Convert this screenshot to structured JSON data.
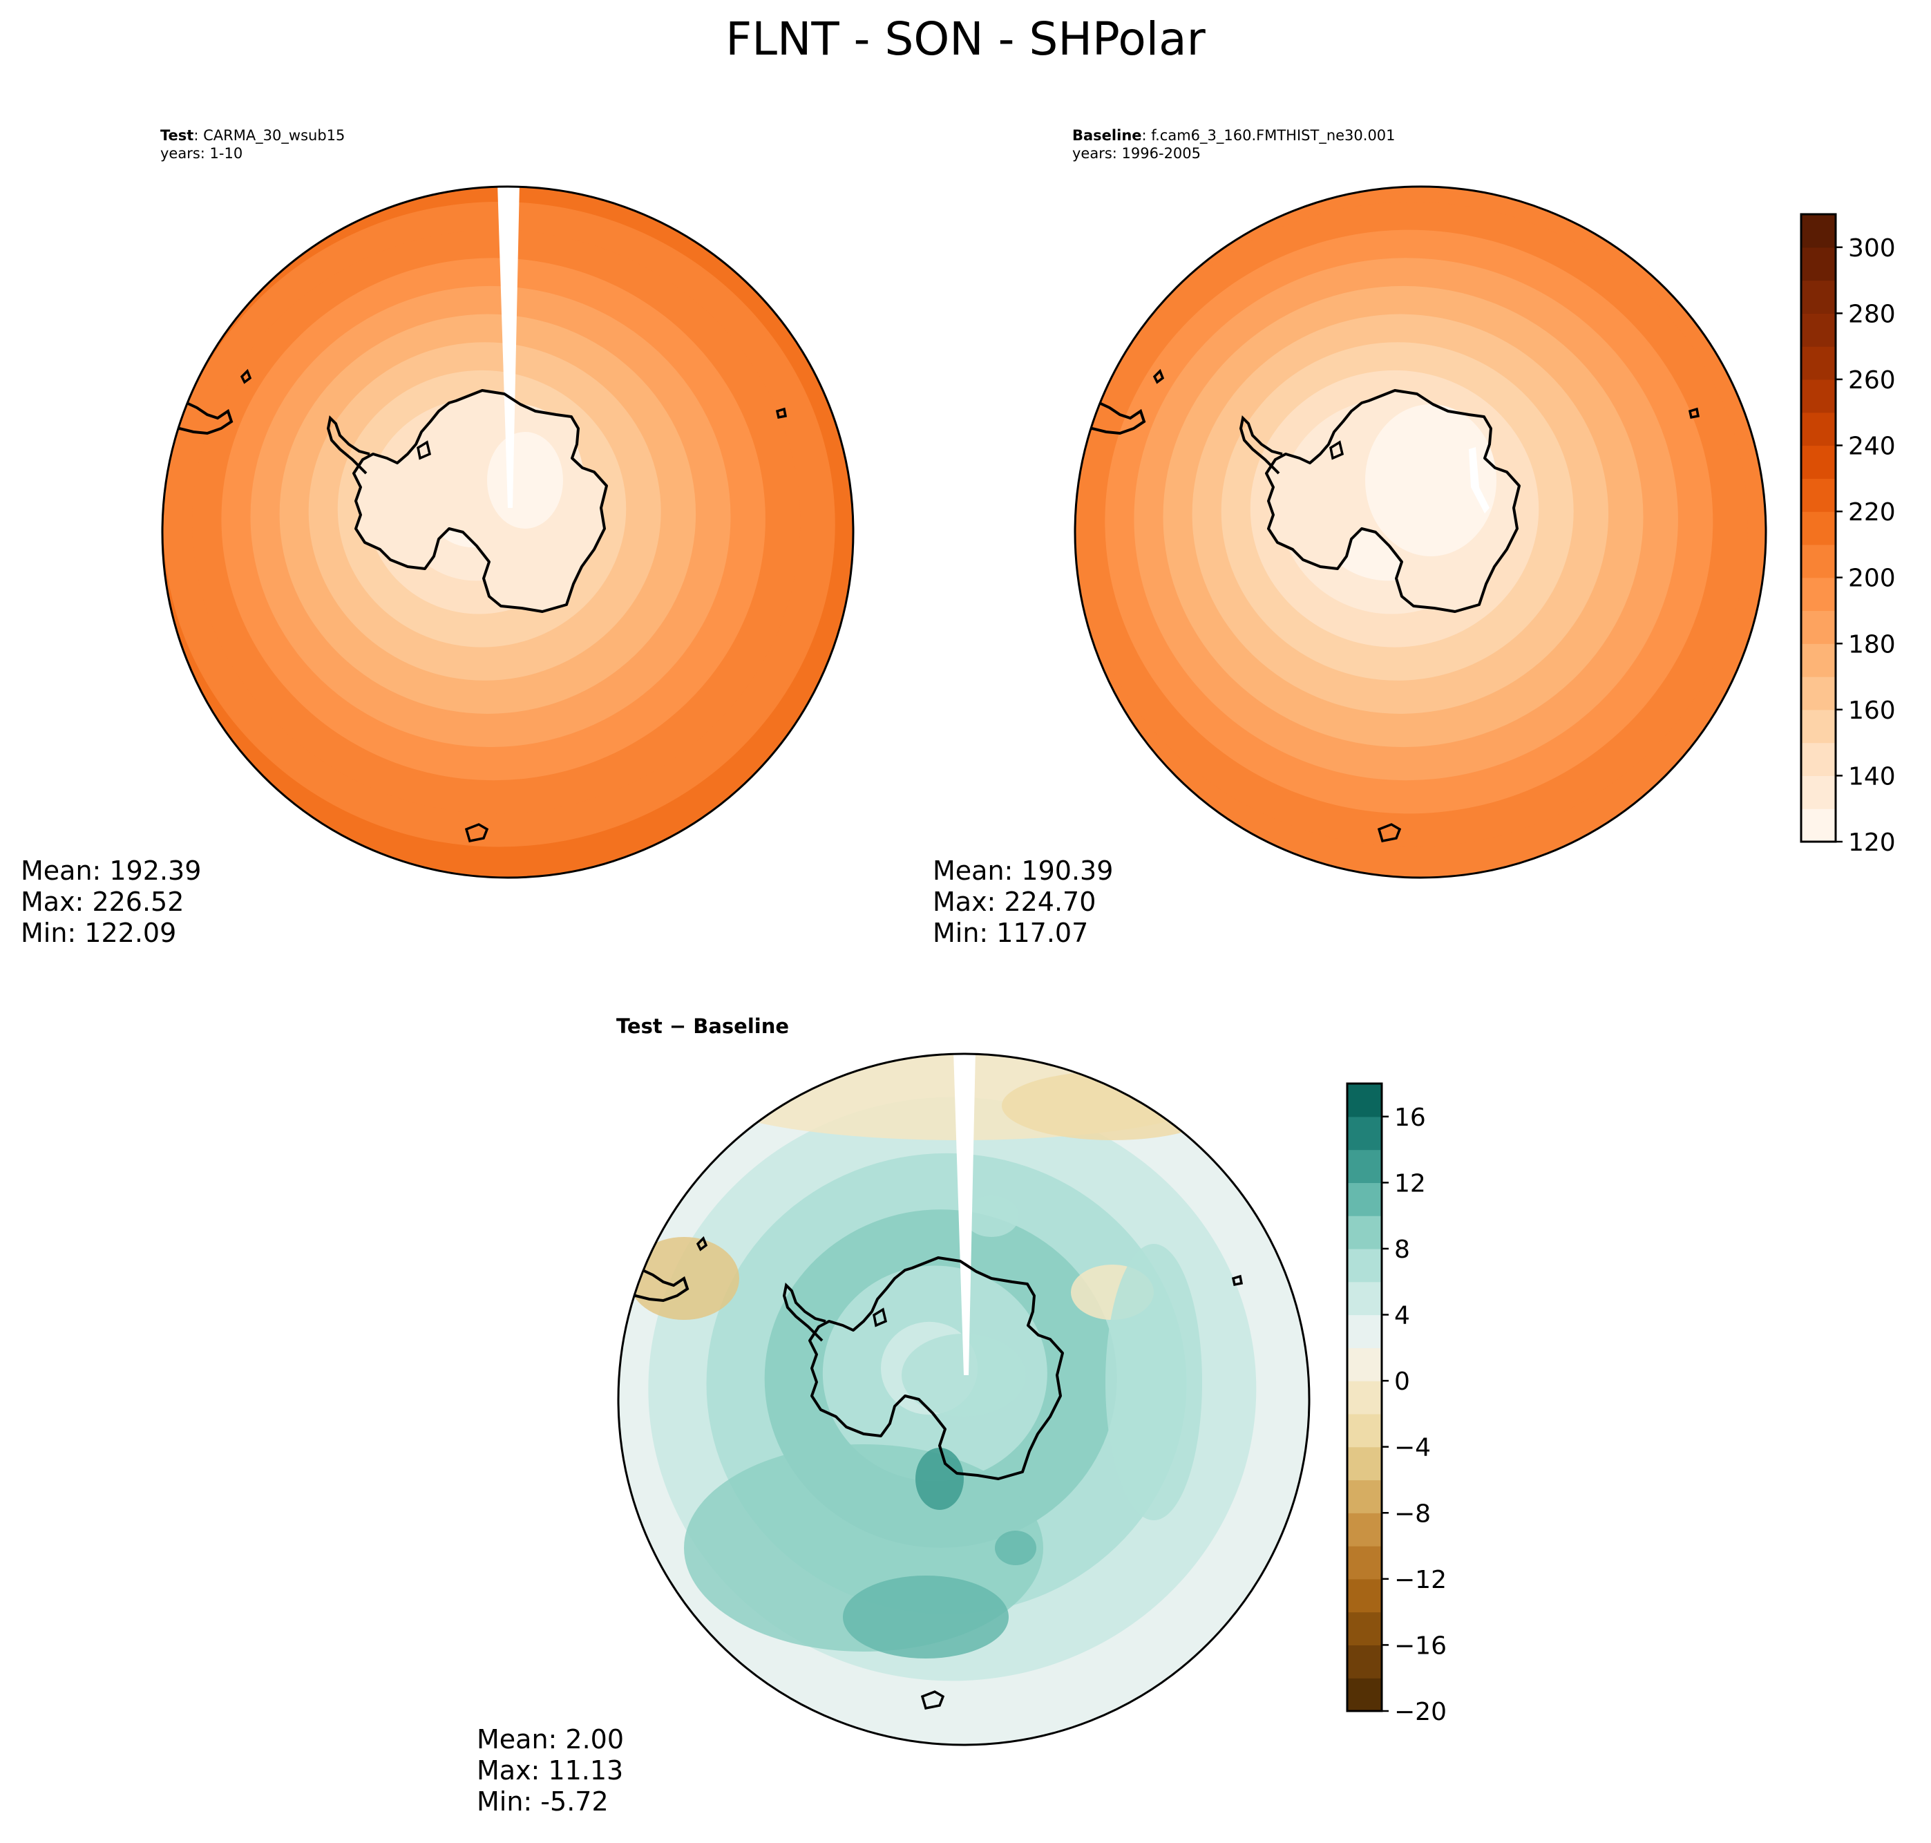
{
  "figure": {
    "title": "FLNT - SON - SHPolar"
  },
  "panels": {
    "test": {
      "title_bold": "Test",
      "title_rest": ": CARMA_30_wsub15",
      "years": "years: 1-10",
      "stats": {
        "mean": "Mean: 192.39",
        "max": "Max: 226.52",
        "min": "Min: 122.09"
      }
    },
    "baseline": {
      "title_bold": "Baseline",
      "title_rest": ": f.cam6_3_160.FMTHIST_ne30.001",
      "years": "years: 1996-2005",
      "stats": {
        "mean": "Mean: 190.39",
        "max": "Max: 224.70",
        "min": "Min: 117.07"
      }
    },
    "diff": {
      "title": "Test − Baseline",
      "stats": {
        "mean": "Mean:  2.00",
        "max": "Max: 11.13",
        "min": "Min: -5.72"
      }
    }
  },
  "chart_data": [
    {
      "type": "heatmap",
      "panel": "Test: CARMA_30_wsub15",
      "projection": "south polar stereographic",
      "field": "FLNT",
      "season": "SON",
      "bands_center_to_edge": [
        122,
        130,
        140,
        150,
        160,
        170,
        180,
        190,
        200,
        205,
        210,
        220,
        226
      ],
      "stats": {
        "mean": 192.39,
        "max": 226.52,
        "min": 122.09
      }
    },
    {
      "type": "heatmap",
      "panel": "Baseline: f.cam6_3_160.FMTHIST_ne30.001",
      "projection": "south polar stereographic",
      "field": "FLNT",
      "season": "SON",
      "bands_center_to_edge": [
        117,
        125,
        135,
        145,
        155,
        165,
        175,
        185,
        195,
        200,
        205,
        215,
        224
      ],
      "stats": {
        "mean": 190.39,
        "max": 224.7,
        "min": 117.07
      }
    },
    {
      "type": "heatmap",
      "panel": "Test − Baseline",
      "projection": "south polar stereographic",
      "bands_center_to_edge": [
        4,
        6,
        8,
        6,
        4,
        2,
        -2
      ],
      "stats": {
        "mean": 2.0,
        "max": 11.13,
        "min": -5.72
      }
    }
  ],
  "colorbars": {
    "abs": {
      "ticks": [
        "120",
        "140",
        "160",
        "180",
        "200",
        "220",
        "240",
        "260",
        "280",
        "300"
      ],
      "range": [
        120,
        310
      ],
      "step": 10,
      "colors": [
        "#fff5eb",
        "#feead6",
        "#fee0c2",
        "#fdd3a8",
        "#fdc48f",
        "#fdb476",
        "#fda35f",
        "#fd9349",
        "#f98334",
        "#f3721f",
        "#ea6010",
        "#dc4f05",
        "#c94302",
        "#b23802",
        "#9e3102",
        "#8c2b04",
        "#7f2704",
        "#6b2003",
        "#5a1c03"
      ]
    },
    "diff": {
      "ticks": [
        "−20",
        "−16",
        "−12",
        "−8",
        "−4",
        "0",
        "4",
        "8",
        "12",
        "16"
      ],
      "range": [
        -20,
        18
      ],
      "step": 2,
      "colors": [
        "#543005",
        "#6f400a",
        "#8a520e",
        "#a66516",
        "#b97a2a",
        "#c99243",
        "#d6ad62",
        "#e2c786",
        "#eedba8",
        "#f3e6c3",
        "#f5f0e0",
        "#e8f2f0",
        "#cdeae5",
        "#b1e0d8",
        "#8fd0c4",
        "#66b9ad",
        "#3e9c91",
        "#218178",
        "#0b665d",
        "#003c30"
      ]
    }
  },
  "colors": {
    "antarctica_outline": "#000000",
    "missing_data_wedge": "#ffffff"
  }
}
